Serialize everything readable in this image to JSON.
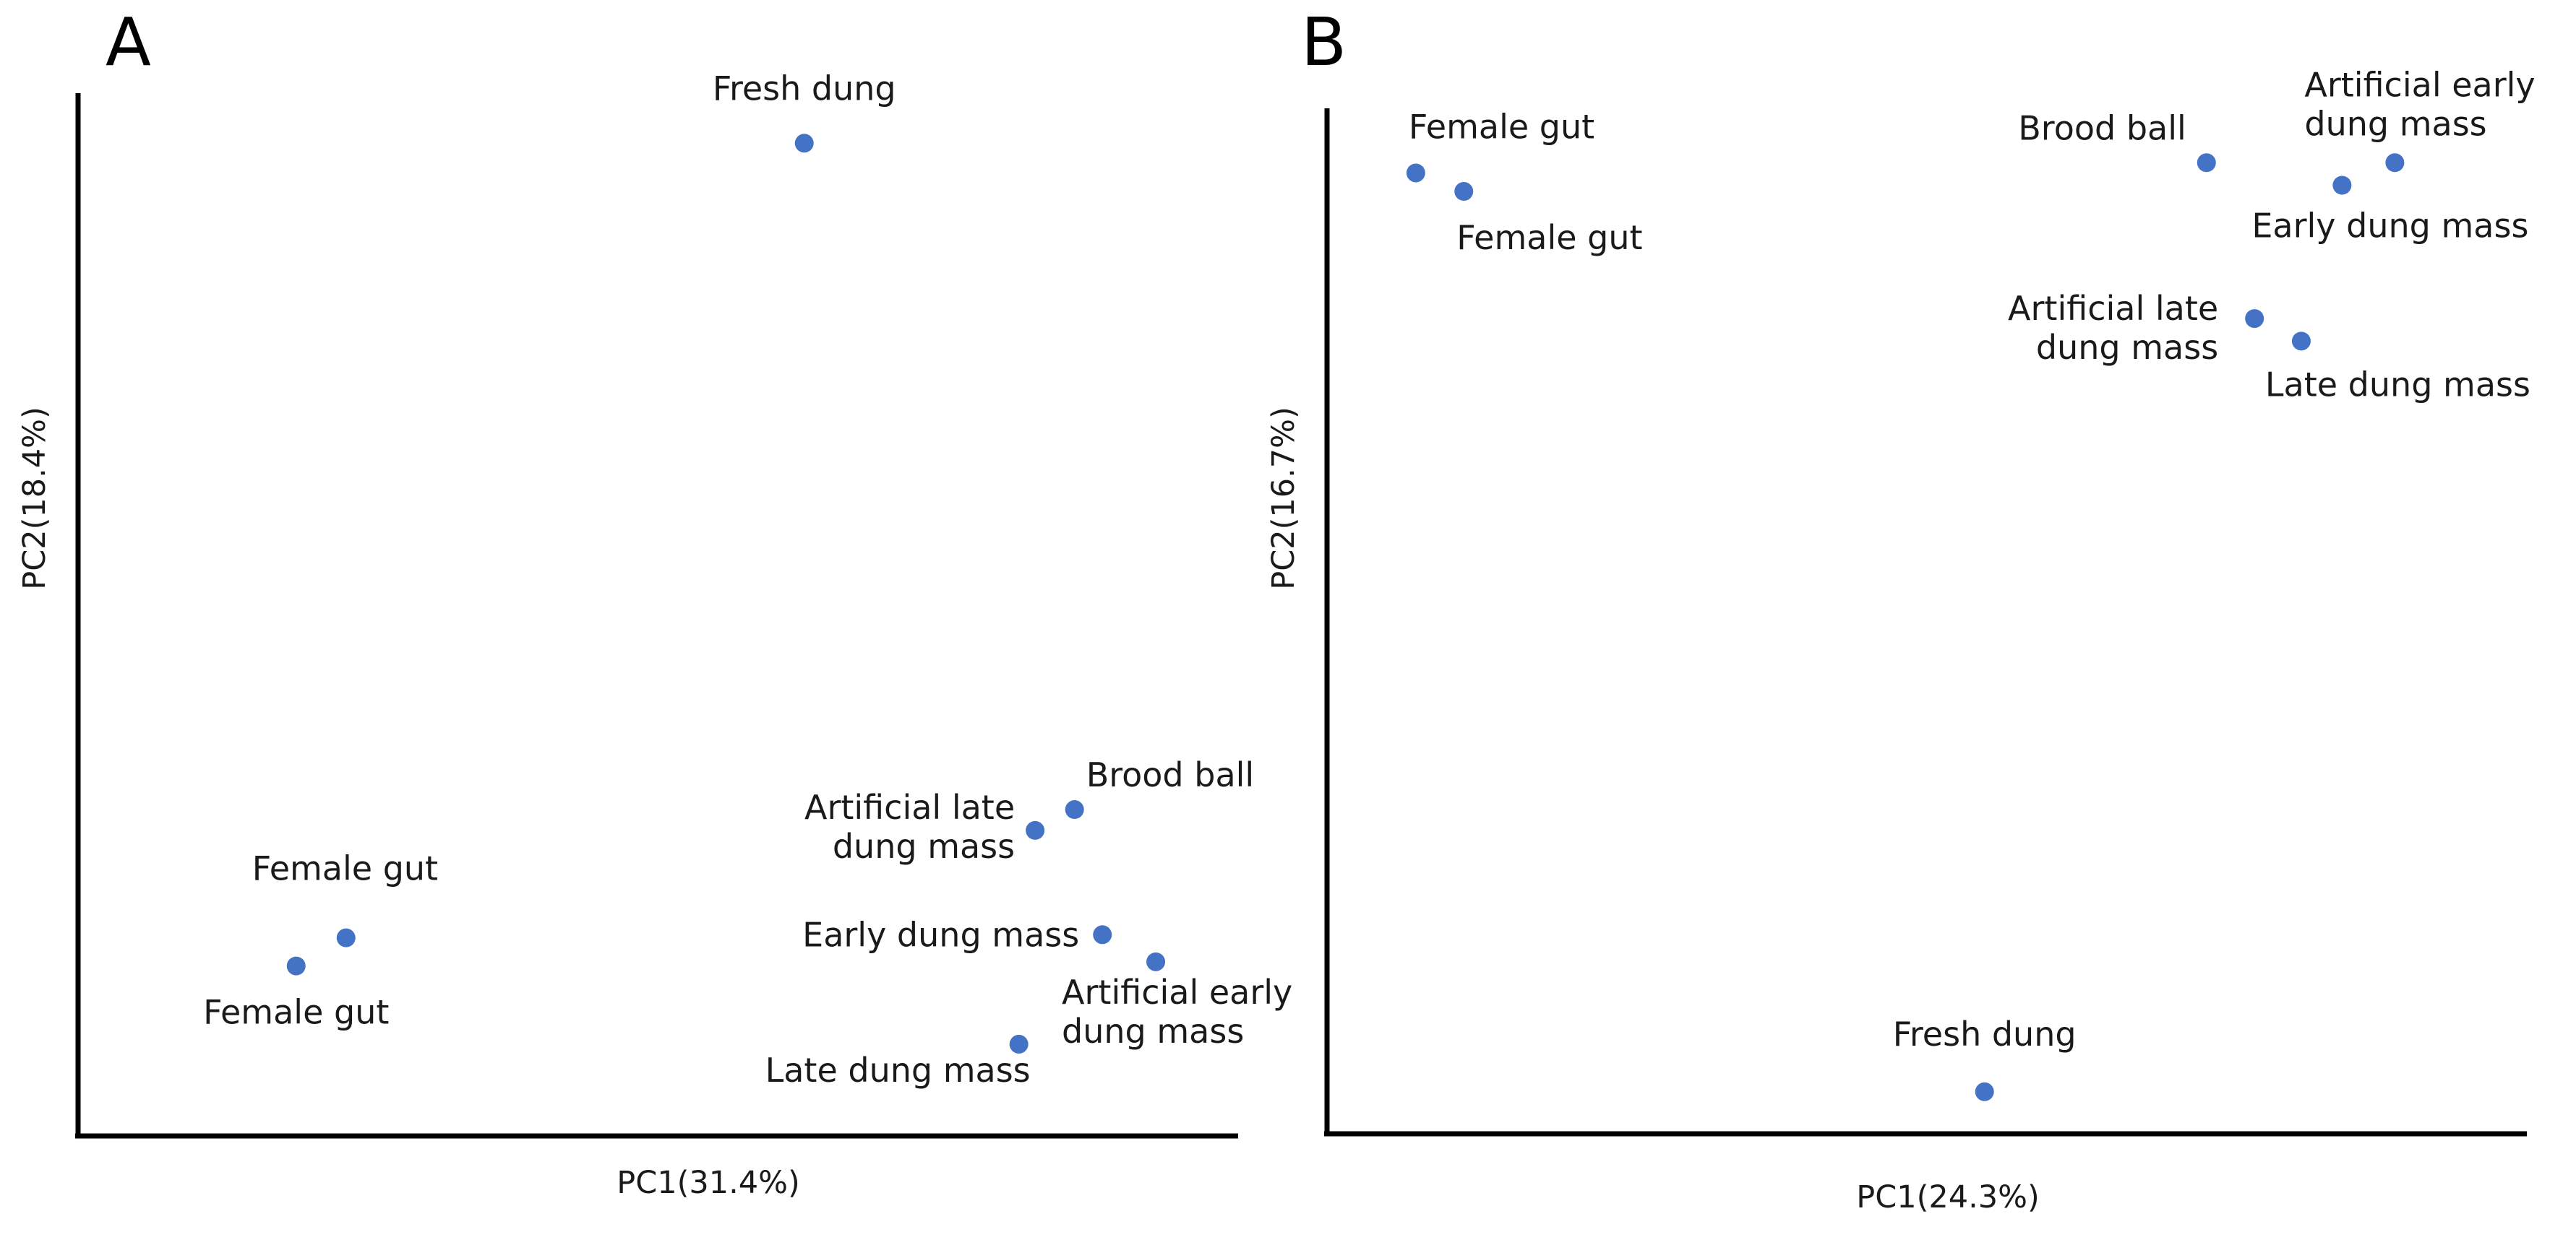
{
  "chart_data": [
    {
      "type": "scatter",
      "panel": "A",
      "xlabel": "PC1(31.4%)",
      "ylabel": "PC2(18.4%)",
      "xlim": [
        0,
        100
      ],
      "ylim": [
        0,
        100
      ],
      "point_color": "#4472C4",
      "points": [
        {
          "x": 62.6,
          "y": 95.2,
          "label": [
            "Fresh dung"
          ]
        },
        {
          "x": 85.9,
          "y": 31.3,
          "label": [
            "Brood ball"
          ]
        },
        {
          "x": 82.5,
          "y": 29.3,
          "label": [
            "Artificial late",
            "dung mass"
          ]
        },
        {
          "x": 88.3,
          "y": 19.3,
          "label": [
            "Early dung mass"
          ]
        },
        {
          "x": 92.9,
          "y": 16.7,
          "label": [
            "Artificial early",
            "dung mass"
          ]
        },
        {
          "x": 81.1,
          "y": 8.8,
          "label": [
            "Late dung mass"
          ]
        },
        {
          "x": 23.1,
          "y": 19.0,
          "label": [
            "Female gut"
          ]
        },
        {
          "x": 18.8,
          "y": 16.3,
          "label": [
            "Female gut"
          ]
        }
      ]
    },
    {
      "type": "scatter",
      "panel": "B",
      "xlabel": "PC1(24.3%)",
      "ylabel": "PC2(16.7%)",
      "xlim": [
        0,
        100
      ],
      "ylim": [
        0,
        100
      ],
      "point_color": "#4472C4",
      "points": [
        {
          "x": 7.4,
          "y": 93.7,
          "label": [
            "Female gut"
          ]
        },
        {
          "x": 11.4,
          "y": 91.9,
          "label": [
            "Female gut"
          ]
        },
        {
          "x": 73.3,
          "y": 94.7,
          "label": [
            "Brood ball"
          ]
        },
        {
          "x": 89.0,
          "y": 94.7,
          "label": [
            "Artificial early",
            "dung mass"
          ]
        },
        {
          "x": 84.6,
          "y": 92.5,
          "label": [
            "Early dung mass"
          ]
        },
        {
          "x": 77.3,
          "y": 79.5,
          "label": [
            "Artificial late",
            "dung mass"
          ]
        },
        {
          "x": 81.2,
          "y": 77.3,
          "label": [
            "Late dung mass"
          ]
        },
        {
          "x": 54.8,
          "y": 4.1,
          "label": [
            "Fresh dung"
          ]
        }
      ]
    }
  ]
}
